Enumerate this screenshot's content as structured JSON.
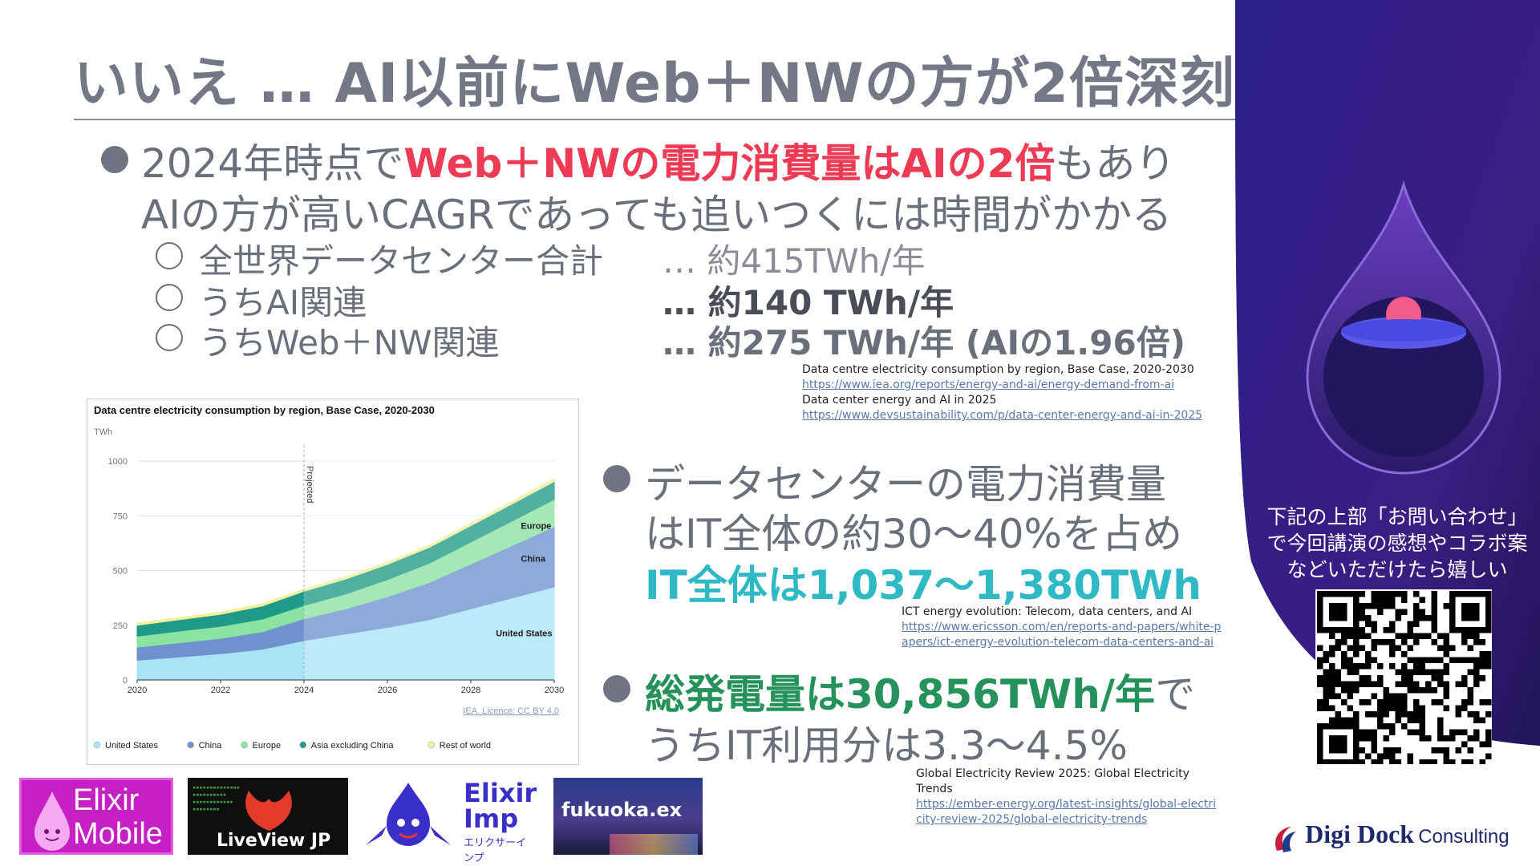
{
  "title": "いいえ … AI以前にWeb＋NWの方が2倍深刻",
  "bullet1": {
    "line1_pre": "2024年時点で",
    "line1_hl": "Web＋NWの電力消費量はAIの2倍",
    "line1_post": "もあり",
    "line2": "AIの方が高いCAGRであっても追いつくには時間がかかる"
  },
  "sub_items": [
    {
      "label": "全世界データセンター合計",
      "value": "… 約415TWh/年"
    },
    {
      "label": "うちAI関連",
      "value": "… 約140 TWh/年"
    },
    {
      "label": "うちWeb＋NW関連",
      "value": "… 約275 TWh/年 (AIの1.96倍)"
    }
  ],
  "source1": {
    "title": "Data centre electricity consumption by region, Base Case, 2020-2030",
    "url1": "https://www.iea.org/reports/energy-and-ai/energy-demand-from-ai",
    "title2": "Data center energy and AI in 2025",
    "url2": "https://www.devsustainability.com/p/data-center-energy-and-ai-in-2025"
  },
  "bullet2": {
    "line1": "データセンターの電力消費量",
    "line2": "はIT全体の約30～40%を占め",
    "line3": "IT全体は1,037～1,380TWh"
  },
  "source2": {
    "title": "ICT energy evolution: Telecom, data centers, and AI",
    "url": "https://www.ericsson.com/en/reports-and-papers/white-papers/ict-energy-evolution-telecom-data-centers-and-ai"
  },
  "bullet3": {
    "line1_hl": "総発電量は30,856TWh/年",
    "line1_post": "で",
    "line2": "うちIT利用分は3.3～4.5%"
  },
  "source3": {
    "title": "Global Electricity Review 2025: Global Electricity Trends",
    "url": "https://ember-energy.org/latest-insights/global-electricity-review-2025/global-electricity-trends"
  },
  "side_text": "下記の上部「お問い合わせ」で今回講演の感想やコラボ案などいただけたら嬉しい",
  "brand": {
    "name": "Digi Dock",
    "suffix": "Consulting"
  },
  "logos": {
    "elixir_mobile": [
      "Elixir",
      "Mobile"
    ],
    "liveview": "LiveView JP",
    "elixir_imp": [
      "Elixir",
      "Imp",
      "エリクサーインプ"
    ],
    "fukuoka": "fukuoka.ex"
  },
  "chart_data": {
    "type": "area",
    "title": "Data centre electricity consumption by region, Base Case, 2020-2030",
    "ylabel": "TWh",
    "x": [
      2020,
      2021,
      2022,
      2023,
      2024,
      2025,
      2026,
      2027,
      2028,
      2029,
      2030
    ],
    "xticks": [
      "2020",
      "2022",
      "2024",
      "2026",
      "2028",
      "2030"
    ],
    "yticks": [
      "0",
      "250",
      "500",
      "750",
      "1000"
    ],
    "ylim": [
      0,
      1000
    ],
    "projected_from": 2024,
    "projected_label": "Projected",
    "series": [
      {
        "name": "United States",
        "color": "#a9e4f6",
        "values": [
          90,
          105,
          120,
          140,
          180,
          210,
          240,
          275,
          325,
          375,
          425
        ]
      },
      {
        "name": "China",
        "color": "#6f92cf",
        "values": [
          60,
          65,
          70,
          80,
          100,
          115,
          140,
          170,
          205,
          240,
          275
        ]
      },
      {
        "name": "Europe",
        "color": "#8be3a1",
        "values": [
          50,
          53,
          55,
          58,
          60,
          68,
          78,
          88,
          100,
          112,
          125
        ]
      },
      {
        "name": "Asia excluding China",
        "color": "#1f9a88",
        "values": [
          50,
          52,
          55,
          60,
          65,
          68,
          70,
          72,
          75,
          78,
          82
        ]
      },
      {
        "name": "Rest of world",
        "color": "#f3ef9a",
        "values": [
          10,
          10,
          10,
          10,
          10,
          10,
          10,
          10,
          12,
          12,
          13
        ]
      }
    ],
    "inline_labels": [
      "Europe",
      "China",
      "United States"
    ],
    "credit": "IEA. Licence: CC BY 4.0",
    "legend_position": "bottom"
  }
}
